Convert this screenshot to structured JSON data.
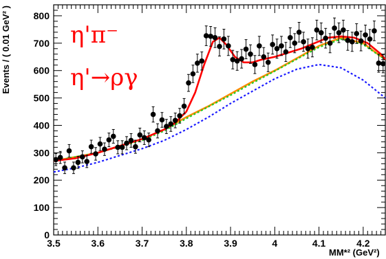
{
  "chart_data": {
    "type": "scatter",
    "title": "",
    "xlabel": "MM*² (GeV²)",
    "ylabel": "Events / ( 0.01 GeV² )",
    "xlim": [
      3.5,
      4.25
    ],
    "ylim": [
      0,
      840
    ],
    "x_ticks": [
      "3.5",
      "3.6",
      "3.7",
      "3.8",
      "3.9",
      "4",
      "4.1",
      "4.2"
    ],
    "y_ticks": [
      "0",
      "100",
      "200",
      "300",
      "400",
      "500",
      "600",
      "700",
      "800"
    ],
    "annotations": [
      "η'π⁻",
      "η'→ργ"
    ],
    "grid": false,
    "series": [
      {
        "kind": "points-with-errors",
        "color": "#000000",
        "x": [
          3.505,
          3.515,
          3.525,
          3.535,
          3.545,
          3.555,
          3.565,
          3.575,
          3.585,
          3.595,
          3.605,
          3.615,
          3.625,
          3.635,
          3.645,
          3.655,
          3.665,
          3.675,
          3.685,
          3.695,
          3.705,
          3.715,
          3.725,
          3.735,
          3.745,
          3.755,
          3.765,
          3.775,
          3.785,
          3.795,
          3.805,
          3.815,
          3.825,
          3.835,
          3.845,
          3.855,
          3.865,
          3.875,
          3.885,
          3.895,
          3.905,
          3.915,
          3.925,
          3.935,
          3.945,
          3.955,
          3.965,
          3.975,
          3.985,
          3.995,
          4.005,
          4.015,
          4.025,
          4.035,
          4.045,
          4.055,
          4.065,
          4.075,
          4.085,
          4.095,
          4.105,
          4.115,
          4.125,
          4.135,
          4.145,
          4.155,
          4.165,
          4.175,
          4.185,
          4.195,
          4.205,
          4.215,
          4.225,
          4.235,
          4.245
        ],
        "y": [
          275,
          283,
          245,
          307,
          245,
          265,
          285,
          268,
          322,
          296,
          332,
          313,
          347,
          360,
          320,
          320,
          335,
          345,
          322,
          365,
          355,
          347,
          440,
          380,
          420,
          396,
          405,
          418,
          435,
          470,
          555,
          588,
          627,
          635,
          727,
          725,
          720,
          688,
          715,
          690,
          640,
          635,
          643,
          678,
          660,
          622,
          690,
          650,
          630,
          695,
          680,
          690,
          668,
          720,
          700,
          740,
          705,
          680,
          685,
          748,
          738,
          718,
          700,
          755,
          738,
          748,
          710,
          705,
          735,
          708,
          730,
          715,
          745,
          627,
          625
        ],
        "err": [
          22,
          22,
          21,
          23,
          21,
          22,
          22,
          22,
          24,
          23,
          24,
          23,
          25,
          25,
          24,
          24,
          24,
          25,
          24,
          25,
          25,
          25,
          28,
          26,
          27,
          26,
          27,
          27,
          27,
          28,
          31,
          32,
          33,
          33,
          36,
          36,
          36,
          35,
          36,
          35,
          34,
          34,
          34,
          35,
          34,
          33,
          35,
          34,
          34,
          35,
          35,
          35,
          35,
          36,
          35,
          36,
          35,
          35,
          35,
          36,
          36,
          36,
          35,
          37,
          36,
          36,
          36,
          35,
          36,
          36,
          36,
          35,
          36,
          33,
          33
        ]
      },
      {
        "name": "",
        "kind": "curve",
        "color": "#ff0000",
        "x": [
          3.5,
          3.55,
          3.6,
          3.65,
          3.7,
          3.75,
          3.775,
          3.8,
          3.82,
          3.84,
          3.86,
          3.875,
          3.89,
          3.91,
          3.93,
          3.95,
          3.97,
          4.0,
          4.03,
          4.06,
          4.09,
          4.12,
          4.15,
          4.18,
          4.21,
          4.24,
          4.25
        ],
        "y": [
          270,
          280,
          300,
          325,
          350,
          385,
          410,
          450,
          520,
          620,
          705,
          720,
          695,
          650,
          630,
          630,
          640,
          650,
          665,
          680,
          700,
          720,
          725,
          720,
          700,
          660,
          640
        ]
      },
      {
        "name": "",
        "kind": "curve",
        "color": "#ff8c00",
        "x": [
          3.5,
          3.6,
          3.7,
          3.75,
          3.8,
          3.85,
          3.9,
          3.95,
          4.0,
          4.05,
          4.1,
          4.15,
          4.2,
          4.25
        ],
        "y": [
          270,
          300,
          350,
          385,
          430,
          470,
          515,
          560,
          600,
          645,
          690,
          720,
          700,
          640
        ]
      },
      {
        "name": "",
        "kind": "curve-dashed",
        "color": "#22cc22",
        "x": [
          3.5,
          3.6,
          3.7,
          3.75,
          3.8,
          3.85,
          3.9,
          3.95,
          4.0,
          4.05,
          4.1,
          4.15,
          4.2,
          4.25
        ],
        "y": [
          270,
          300,
          345,
          380,
          425,
          468,
          510,
          555,
          598,
          642,
          685,
          715,
          695,
          640
        ]
      },
      {
        "name": "",
        "kind": "curve-dashed",
        "color": "#1a1aff",
        "x": [
          3.5,
          3.55,
          3.6,
          3.65,
          3.7,
          3.75,
          3.8,
          3.85,
          3.9,
          3.95,
          4.0,
          4.05,
          4.1,
          4.15,
          4.2,
          4.25
        ],
        "y": [
          230,
          245,
          265,
          290,
          315,
          345,
          385,
          430,
          480,
          525,
          570,
          605,
          622,
          610,
          565,
          500
        ]
      }
    ]
  }
}
